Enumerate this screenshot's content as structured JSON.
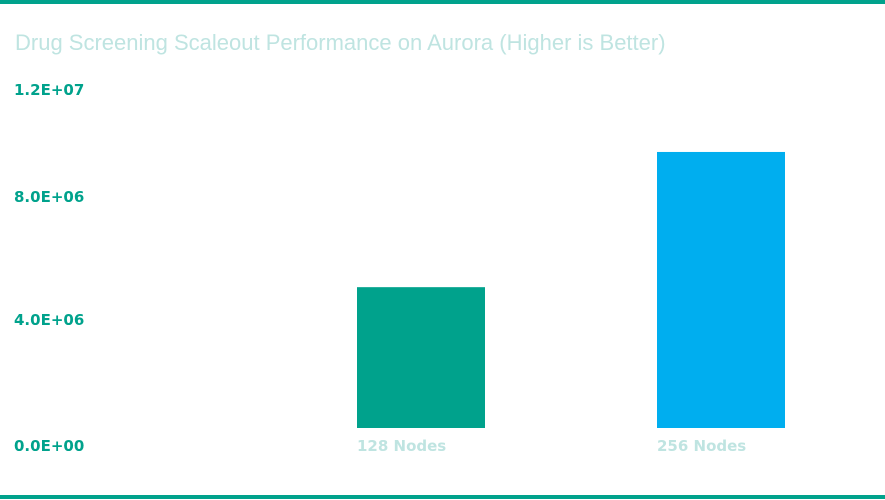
{
  "colors": {
    "accent": "#00a28c",
    "bar_primary": "#00a28c",
    "bar_secondary": "#00aeef",
    "title": "#bfe4e1",
    "category_label": "#bfe4e1",
    "tick_label": "#00a28c"
  },
  "chart_data": {
    "type": "bar",
    "title": "Drug Screening Scaleout Performance on Aurora (Higher is Better)",
    "xlabel": "",
    "ylabel": "",
    "categories": [
      "128 Nodes",
      "256 Nodes"
    ],
    "values": [
      5000000,
      9800000
    ],
    "bar_colors": [
      "#00a28c",
      "#00aeef"
    ],
    "ylim": [
      0,
      12000000
    ],
    "yticks": [
      0,
      4000000,
      8000000,
      12000000
    ],
    "ytick_labels": [
      "0.0E+00",
      "4.0E+06",
      "8.0E+06",
      "1.2E+07"
    ],
    "grid": false,
    "legend": "none"
  }
}
